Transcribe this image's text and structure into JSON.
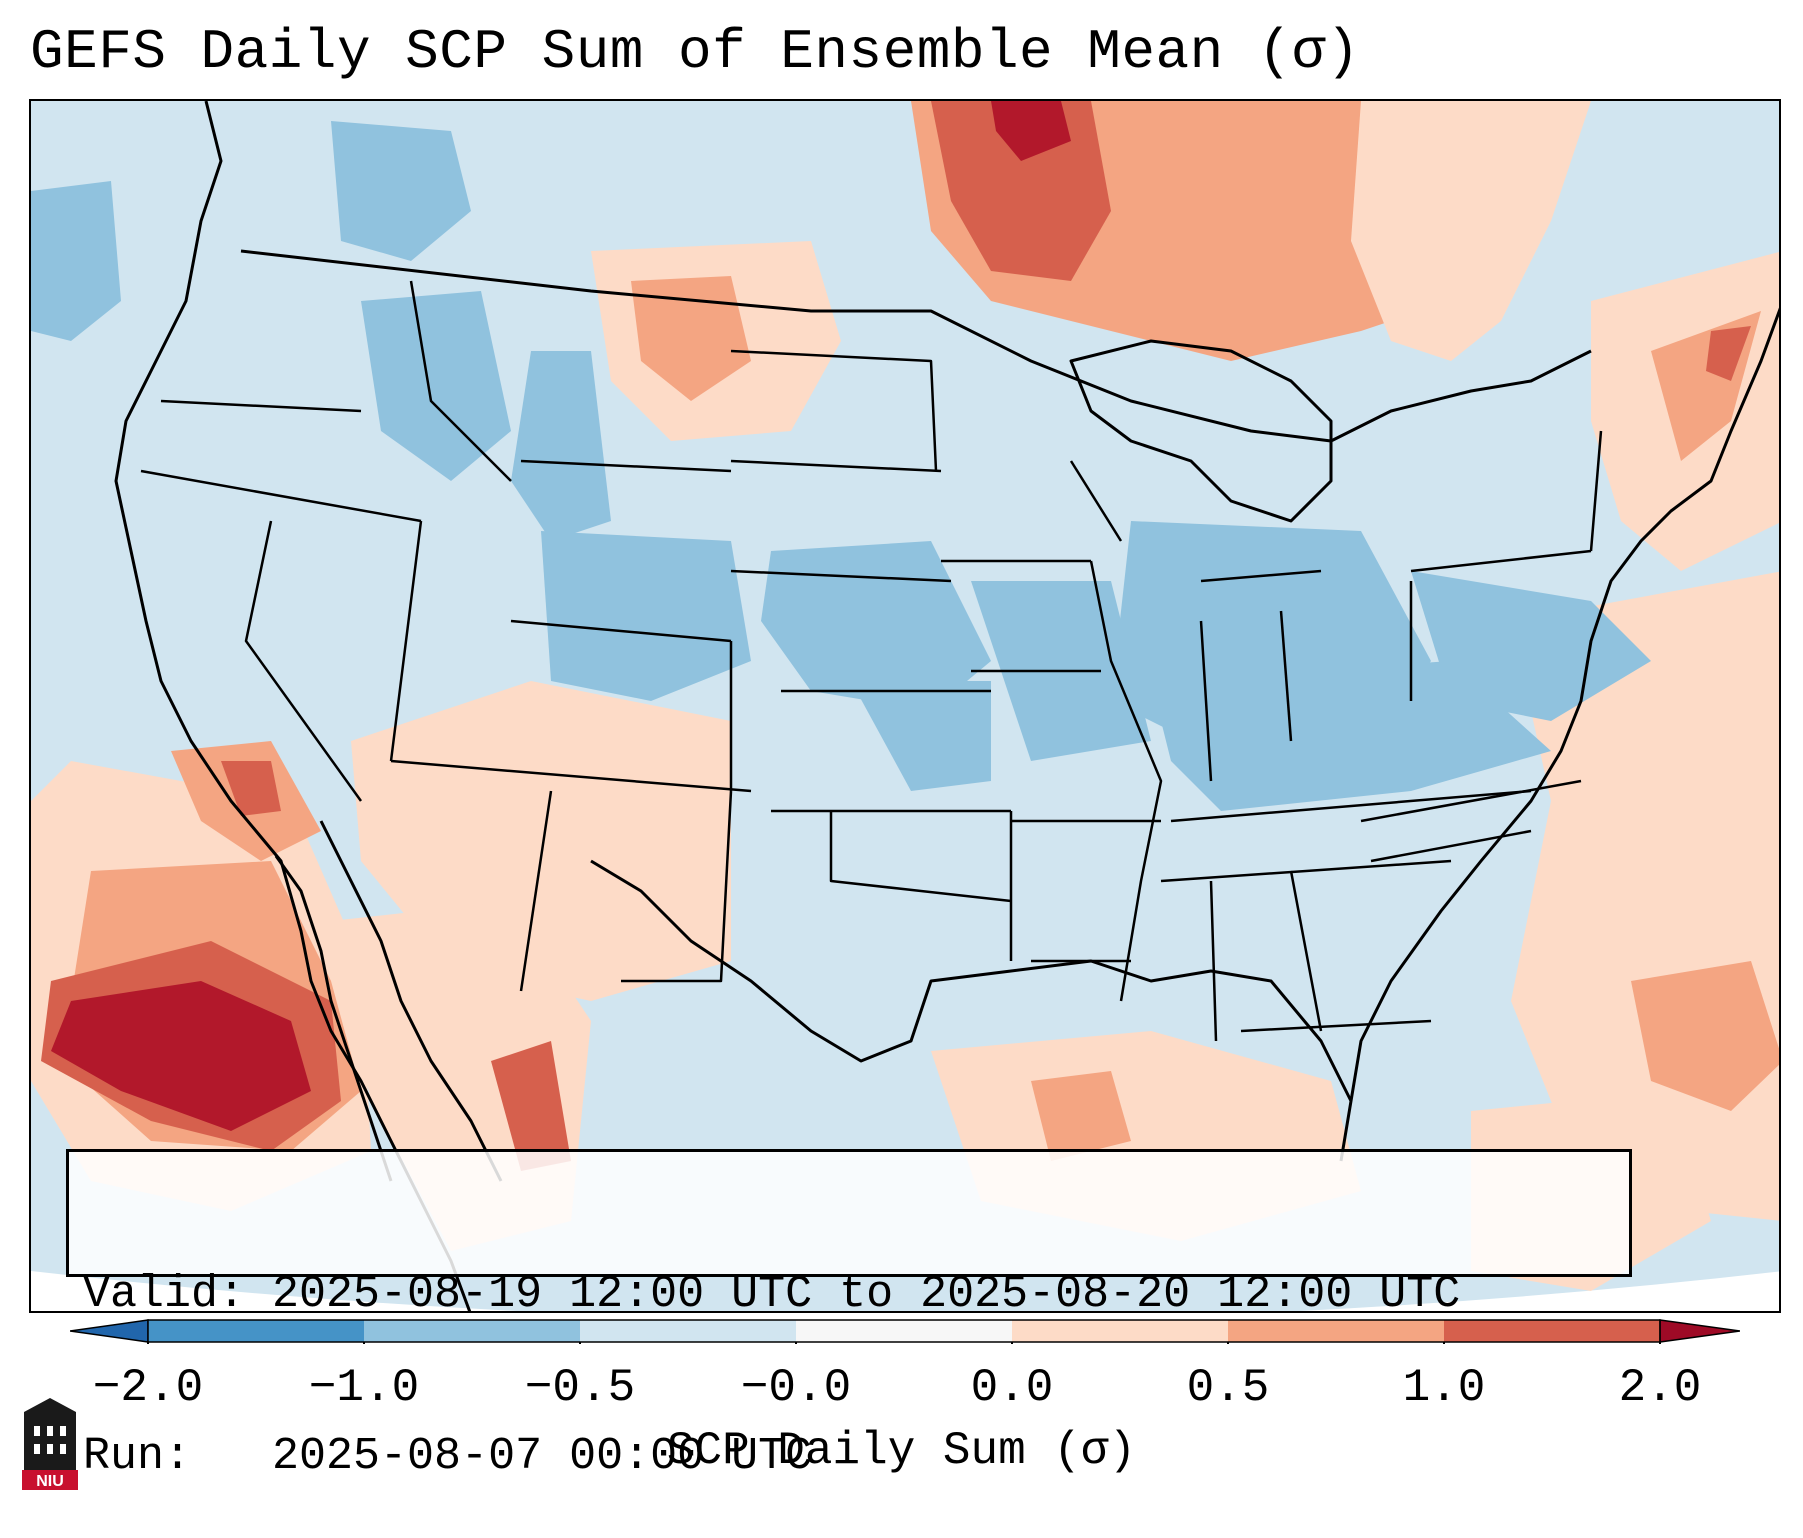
{
  "title": "GEFS Daily SCP Sum of Ensemble Mean (σ)",
  "info": {
    "valid_line": "Valid: 2025-08-19 12:00 UTC to 2025-08-20 12:00 UTC",
    "run_line": "Run:   2025-08-07 00:00 UTC"
  },
  "colorbar": {
    "label": "SCP Daily Sum (σ)",
    "ticks": [
      "−2.0",
      "−1.0",
      "−0.5",
      "−0.0",
      "0.0",
      "0.5",
      "1.0",
      "2.0"
    ],
    "bin_colors": [
      "#4593c7",
      "#90c2de",
      "#d1e5f0",
      "#f7f7f7",
      "#fddbc7",
      "#f4a582",
      "#d6604d",
      "#b2182b"
    ],
    "under_color": "#2166ac",
    "over_color": "#9e0a26"
  },
  "map": {
    "region": "Contiguous United States, southern Canada, northern Mexico, Gulf of Mexico",
    "background_value_color": "#d1e5f0",
    "coastline_color": "#000000"
  },
  "logo": {
    "text": "NIU",
    "color": "#c8102e"
  }
}
